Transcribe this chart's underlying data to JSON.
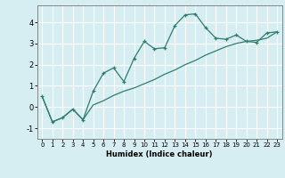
{
  "x": [
    0,
    1,
    2,
    3,
    4,
    5,
    6,
    7,
    8,
    9,
    10,
    11,
    12,
    13,
    14,
    15,
    16,
    17,
    18,
    19,
    20,
    21,
    22,
    23
  ],
  "y_curve": [
    0.5,
    -0.7,
    -0.5,
    -0.1,
    -0.6,
    0.75,
    1.6,
    1.85,
    1.2,
    2.3,
    3.1,
    2.75,
    2.8,
    3.85,
    4.35,
    4.4,
    3.75,
    3.25,
    3.2,
    3.4,
    3.1,
    3.05,
    3.5,
    3.55
  ],
  "y_line": [
    0.5,
    -0.7,
    -0.5,
    -0.1,
    -0.6,
    0.1,
    0.3,
    0.55,
    0.75,
    0.9,
    1.1,
    1.3,
    1.55,
    1.75,
    2.0,
    2.2,
    2.45,
    2.65,
    2.85,
    3.0,
    3.1,
    3.15,
    3.25,
    3.55
  ],
  "color": "#2e7d6e",
  "bg_color": "#d6eef2",
  "grid_color": "#ffffff",
  "xlabel": "Humidex (Indice chaleur)",
  "ylim": [
    -1.5,
    4.8
  ],
  "xlim": [
    -0.5,
    23.5
  ],
  "yticks": [
    -1,
    0,
    1,
    2,
    3,
    4
  ],
  "xticks": [
    0,
    1,
    2,
    3,
    4,
    5,
    6,
    7,
    8,
    9,
    10,
    11,
    12,
    13,
    14,
    15,
    16,
    17,
    18,
    19,
    20,
    21,
    22,
    23
  ],
  "marker": "+"
}
